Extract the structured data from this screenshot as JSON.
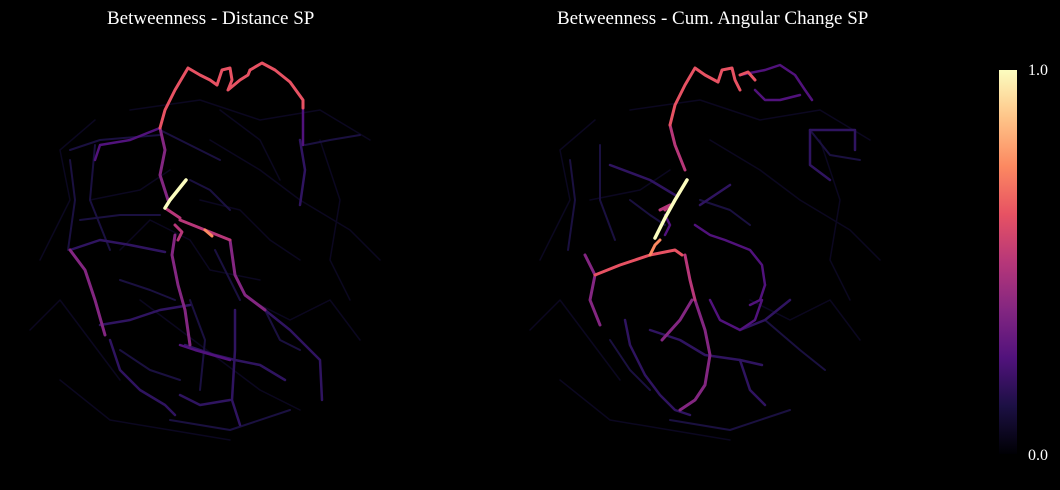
{
  "maps": [
    {
      "title": "Betweenness - Distance SP"
    },
    {
      "title": "Betweenness - Cum. Angular Change SP"
    }
  ],
  "colorbar": {
    "min_label": "0.0",
    "max_label": "1.0",
    "colormap": "magma",
    "stops": [
      "#000004",
      "#1c1044",
      "#51127c",
      "#832681",
      "#b73779",
      "#e75263",
      "#fc8961",
      "#fec488",
      "#fcfdbf"
    ]
  },
  "background": "#000000"
}
